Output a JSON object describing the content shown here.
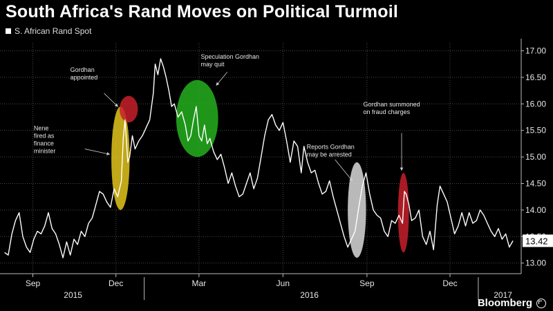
{
  "title": "South Africa's Rand Moves on Political Turmoil",
  "brand": "Bloomberg",
  "chart_data": {
    "type": "line",
    "series": [
      {
        "name": "S. African Rand Spot",
        "color": "#ffffff",
        "points": [
          [
            "2015-08-01",
            13.2
          ],
          [
            "2015-08-05",
            13.15
          ],
          [
            "2015-08-09",
            13.55
          ],
          [
            "2015-08-13",
            13.8
          ],
          [
            "2015-08-17",
            13.95
          ],
          [
            "2015-08-21",
            13.5
          ],
          [
            "2015-08-25",
            13.3
          ],
          [
            "2015-08-29",
            13.2
          ],
          [
            "2015-09-02",
            13.45
          ],
          [
            "2015-09-06",
            13.6
          ],
          [
            "2015-09-10",
            13.55
          ],
          [
            "2015-09-14",
            13.7
          ],
          [
            "2015-09-18",
            13.95
          ],
          [
            "2015-09-22",
            13.65
          ],
          [
            "2015-09-26",
            13.55
          ],
          [
            "2015-09-30",
            13.35
          ],
          [
            "2015-10-04",
            13.1
          ],
          [
            "2015-10-08",
            13.4
          ],
          [
            "2015-10-12",
            13.15
          ],
          [
            "2015-10-16",
            13.45
          ],
          [
            "2015-10-20",
            13.35
          ],
          [
            "2015-10-24",
            13.6
          ],
          [
            "2015-10-28",
            13.5
          ],
          [
            "2015-11-01",
            13.75
          ],
          [
            "2015-11-05",
            13.85
          ],
          [
            "2015-11-09",
            14.1
          ],
          [
            "2015-11-13",
            14.35
          ],
          [
            "2015-11-17",
            14.3
          ],
          [
            "2015-11-21",
            14.15
          ],
          [
            "2015-11-25",
            14.05
          ],
          [
            "2015-11-29",
            14.4
          ],
          [
            "2015-12-03",
            14.25
          ],
          [
            "2015-12-07",
            14.55
          ],
          [
            "2015-12-09",
            15.35
          ],
          [
            "2015-12-11",
            15.7
          ],
          [
            "2015-12-14",
            14.9
          ],
          [
            "2015-12-16",
            15.0
          ],
          [
            "2015-12-19",
            15.4
          ],
          [
            "2015-12-22",
            15.15
          ],
          [
            "2015-12-26",
            15.3
          ],
          [
            "2015-12-30",
            15.4
          ],
          [
            "2016-01-03",
            15.55
          ],
          [
            "2016-01-07",
            15.7
          ],
          [
            "2016-01-11",
            16.2
          ],
          [
            "2016-01-13",
            16.75
          ],
          [
            "2016-01-16",
            16.55
          ],
          [
            "2016-01-19",
            16.85
          ],
          [
            "2016-01-22",
            16.7
          ],
          [
            "2016-01-25",
            16.5
          ],
          [
            "2016-01-28",
            16.25
          ],
          [
            "2016-01-31",
            15.95
          ],
          [
            "2016-02-03",
            16.0
          ],
          [
            "2016-02-07",
            15.75
          ],
          [
            "2016-02-11",
            15.85
          ],
          [
            "2016-02-15",
            15.6
          ],
          [
            "2016-02-18",
            15.3
          ],
          [
            "2016-02-21",
            15.4
          ],
          [
            "2016-02-24",
            15.7
          ],
          [
            "2016-02-27",
            15.95
          ],
          [
            "2016-03-01",
            15.4
          ],
          [
            "2016-03-04",
            15.3
          ],
          [
            "2016-03-07",
            15.6
          ],
          [
            "2016-03-10",
            15.25
          ],
          [
            "2016-03-13",
            15.35
          ],
          [
            "2016-03-17",
            15.1
          ],
          [
            "2016-03-21",
            14.95
          ],
          [
            "2016-03-25",
            15.05
          ],
          [
            "2016-03-29",
            14.8
          ],
          [
            "2016-04-02",
            14.5
          ],
          [
            "2016-04-06",
            14.7
          ],
          [
            "2016-04-10",
            14.45
          ],
          [
            "2016-04-14",
            14.25
          ],
          [
            "2016-04-18",
            14.3
          ],
          [
            "2016-04-22",
            14.5
          ],
          [
            "2016-04-26",
            14.7
          ],
          [
            "2016-04-30",
            14.4
          ],
          [
            "2016-05-04",
            14.6
          ],
          [
            "2016-05-08",
            15.0
          ],
          [
            "2016-05-12",
            15.4
          ],
          [
            "2016-05-16",
            15.7
          ],
          [
            "2016-05-20",
            15.8
          ],
          [
            "2016-05-24",
            15.6
          ],
          [
            "2016-05-28",
            15.5
          ],
          [
            "2016-06-01",
            15.65
          ],
          [
            "2016-06-05",
            15.3
          ],
          [
            "2016-06-09",
            14.9
          ],
          [
            "2016-06-13",
            15.3
          ],
          [
            "2016-06-17",
            15.2
          ],
          [
            "2016-06-21",
            14.7
          ],
          [
            "2016-06-24",
            15.2
          ],
          [
            "2016-06-28",
            14.9
          ],
          [
            "2016-07-02",
            14.7
          ],
          [
            "2016-07-06",
            14.75
          ],
          [
            "2016-07-10",
            14.5
          ],
          [
            "2016-07-14",
            14.3
          ],
          [
            "2016-07-18",
            14.35
          ],
          [
            "2016-07-22",
            14.55
          ],
          [
            "2016-07-26",
            14.25
          ],
          [
            "2016-07-30",
            14.0
          ],
          [
            "2016-08-03",
            13.75
          ],
          [
            "2016-08-07",
            13.5
          ],
          [
            "2016-08-11",
            13.3
          ],
          [
            "2016-08-15",
            13.45
          ],
          [
            "2016-08-19",
            13.6
          ],
          [
            "2016-08-23",
            14.05
          ],
          [
            "2016-08-27",
            14.45
          ],
          [
            "2016-08-31",
            14.7
          ],
          [
            "2016-09-04",
            14.3
          ],
          [
            "2016-09-08",
            14.0
          ],
          [
            "2016-09-12",
            13.9
          ],
          [
            "2016-09-16",
            13.85
          ],
          [
            "2016-09-20",
            13.6
          ],
          [
            "2016-09-24",
            13.5
          ],
          [
            "2016-09-28",
            13.8
          ],
          [
            "2016-10-02",
            13.75
          ],
          [
            "2016-10-06",
            13.9
          ],
          [
            "2016-10-10",
            13.75
          ],
          [
            "2016-10-12",
            14.35
          ],
          [
            "2016-10-14",
            14.3
          ],
          [
            "2016-10-17",
            14.1
          ],
          [
            "2016-10-20",
            13.8
          ],
          [
            "2016-10-24",
            13.85
          ],
          [
            "2016-10-28",
            14.0
          ],
          [
            "2016-11-01",
            13.5
          ],
          [
            "2016-11-05",
            13.35
          ],
          [
            "2016-11-09",
            13.6
          ],
          [
            "2016-11-13",
            13.25
          ],
          [
            "2016-11-17",
            14.1
          ],
          [
            "2016-11-20",
            14.45
          ],
          [
            "2016-11-24",
            14.3
          ],
          [
            "2016-11-28",
            14.15
          ],
          [
            "2016-12-02",
            13.85
          ],
          [
            "2016-12-06",
            13.55
          ],
          [
            "2016-12-10",
            13.7
          ],
          [
            "2016-12-14",
            13.95
          ],
          [
            "2016-12-18",
            13.7
          ],
          [
            "2016-12-22",
            13.95
          ],
          [
            "2016-12-26",
            13.75
          ],
          [
            "2016-12-30",
            13.8
          ],
          [
            "2017-01-03",
            14.0
          ],
          [
            "2017-01-07",
            13.9
          ],
          [
            "2017-01-11",
            13.75
          ],
          [
            "2017-01-15",
            13.6
          ],
          [
            "2017-01-19",
            13.5
          ],
          [
            "2017-01-23",
            13.65
          ],
          [
            "2017-01-27",
            13.45
          ],
          [
            "2017-01-31",
            13.55
          ],
          [
            "2017-02-04",
            13.3
          ],
          [
            "2017-02-08",
            13.42
          ]
        ]
      }
    ],
    "y_axis": {
      "range": [
        12.8,
        17.15
      ],
      "ticks": [
        13.0,
        13.5,
        14.0,
        14.5,
        15.0,
        15.5,
        16.0,
        16.5,
        17.0
      ],
      "side": "right"
    },
    "x_axis": {
      "range": [
        "2015-07-27",
        "2017-02-17"
      ],
      "month_ticks": [
        {
          "label": "Sep",
          "date": "2015-09-01"
        },
        {
          "label": "Dec",
          "date": "2015-12-01"
        },
        {
          "label": "Mar",
          "date": "2016-03-01"
        },
        {
          "label": "Jun",
          "date": "2016-06-01"
        },
        {
          "label": "Sep",
          "date": "2016-09-01"
        },
        {
          "label": "Dec",
          "date": "2016-12-01"
        }
      ],
      "year_labels": [
        {
          "label": "2015",
          "center": "2015-10-15"
        },
        {
          "label": "2016",
          "center": "2016-06-30"
        },
        {
          "label": "2017",
          "center": "2017-01-28"
        }
      ],
      "year_dividers": [
        "2016-01-01",
        "2017-01-01"
      ]
    },
    "last_value_label": "13.42",
    "highlights": [
      {
        "start": "2015-11-26",
        "end": "2015-12-16",
        "lo": 14.0,
        "hi": 15.95,
        "color": "#e3c51c"
      },
      {
        "start": "2015-12-05",
        "end": "2015-12-25",
        "lo": 15.65,
        "hi": 16.15,
        "color": "#c7202a"
      },
      {
        "start": "2016-02-05",
        "end": "2016-03-22",
        "lo": 15.0,
        "hi": 16.45,
        "color": "#24b01f"
      },
      {
        "start": "2016-08-11",
        "end": "2016-08-31",
        "lo": 13.1,
        "hi": 14.9,
        "color": "#d9d9d9"
      },
      {
        "start": "2016-10-05",
        "end": "2016-10-17",
        "lo": 13.2,
        "hi": 14.7,
        "color": "#c7202a"
      }
    ],
    "annotations": [
      {
        "text": [
          "Gordhan",
          "appointed"
        ],
        "date": "2015-10-12",
        "value": 16.6,
        "arrow_from": [
          "2015-11-18",
          16.2
        ],
        "arrow_to": [
          "2015-12-03",
          15.95
        ]
      },
      {
        "text": [
          "Nene",
          "fired as",
          "finance",
          "minister"
        ],
        "date": "2015-09-02",
        "value": 15.5,
        "arrow_from": [
          "2015-10-28",
          15.15
        ],
        "arrow_to": [
          "2015-11-24",
          15.05
        ]
      },
      {
        "text": [
          "Speculation Gordhan",
          "may quit"
        ],
        "date": "2016-03-03",
        "value": 16.85,
        "arrow_from": [
          "2016-04-01",
          16.6
        ],
        "arrow_to": [
          "2016-03-20",
          16.35
        ]
      },
      {
        "text": [
          "Reports Gordhan",
          "may be arrested"
        ],
        "date": "2016-06-27",
        "value": 15.15,
        "arrow_from": [
          "2016-07-28",
          14.95
        ],
        "arrow_to": [
          "2016-08-16",
          14.55
        ]
      },
      {
        "text": [
          "Gordhan summoned",
          "on fraud charges"
        ],
        "date": "2016-08-28",
        "value": 15.95,
        "arrow_from": [
          "2016-10-09",
          15.45
        ],
        "arrow_to": [
          "2016-10-09",
          14.75
        ]
      }
    ]
  }
}
